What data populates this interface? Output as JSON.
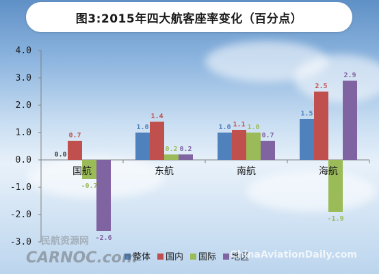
{
  "title": "图3:2015年四大航客座率变化（百分点）",
  "colors": {
    "整体": "#4f81bd",
    "国内": "#c0504d",
    "国际": "#9bbb59",
    "地区": "#8064a2"
  },
  "watermarks": {
    "left_cn": "民航资源网",
    "left_en": "CARNOC.com",
    "right_en": "ChinaAviationDaily.com"
  },
  "chart_data": {
    "type": "bar",
    "title": "图3:2015年四大航客座率变化（百分点）",
    "categories": [
      "国航",
      "东航",
      "南航",
      "海航"
    ],
    "series": [
      {
        "name": "整体",
        "values": [
          0.0,
          1.0,
          1.0,
          1.5
        ],
        "labels": [
          "0.0",
          "1.0",
          "1.0",
          "1.5"
        ]
      },
      {
        "name": "国内",
        "values": [
          0.7,
          1.4,
          1.1,
          2.5
        ],
        "labels": [
          "0.7",
          "1.4",
          "1.1",
          "2.5"
        ]
      },
      {
        "name": "国际",
        "values": [
          -0.7,
          0.2,
          1.0,
          -1.9
        ],
        "labels": [
          "-0.7",
          "0.2",
          "1.0",
          "-1.9"
        ]
      },
      {
        "name": "地区",
        "values": [
          -2.6,
          0.2,
          0.7,
          2.9
        ],
        "labels": [
          "-2.6",
          "0.2",
          "0.7",
          "2.9"
        ]
      }
    ],
    "ylim": [
      -3.0,
      4.0
    ],
    "yticks": [
      "-3.0",
      "-2.0",
      "-1.0",
      "0.0",
      "1.0",
      "2.0",
      "3.0",
      "4.0"
    ],
    "ytick_values": [
      -3,
      -2,
      -1,
      0,
      1,
      2,
      3,
      4
    ],
    "grid": false,
    "legend_position": "bottom-center",
    "xlabel": "",
    "ylabel": ""
  }
}
